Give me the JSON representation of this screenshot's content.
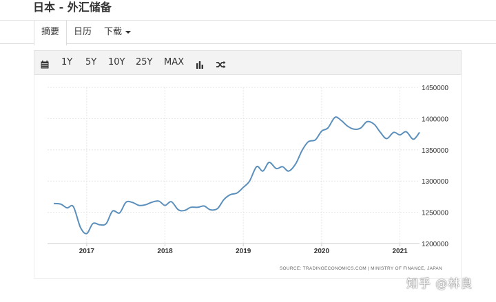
{
  "page_title": "日本 - 外汇储备",
  "tabs": [
    {
      "label": "摘要",
      "active": true
    },
    {
      "label": "日历",
      "active": false
    },
    {
      "label": "下载",
      "active": false,
      "dropdown": true
    }
  ],
  "toolbar": {
    "ranges": [
      "1Y",
      "5Y",
      "10Y",
      "25Y",
      "MAX"
    ],
    "icons": [
      "calendar-icon",
      "bar-chart-icon",
      "shuffle-icon"
    ]
  },
  "chart_data": {
    "type": "line",
    "title": "",
    "xlabel": "",
    "ylabel": "",
    "x_ticks": [
      "2017",
      "2018",
      "2019",
      "2020",
      "2021"
    ],
    "y_ticks": [
      1200000,
      1250000,
      1300000,
      1350000,
      1400000,
      1450000
    ],
    "ylim": [
      1200000,
      1450000
    ],
    "xlim": [
      2016.5,
      2021.25
    ],
    "grid": true,
    "line_color": "#5b8fbb",
    "series": [
      {
        "x": [
          2016.58,
          2016.67,
          2016.75,
          2016.83,
          2016.92,
          2017.0,
          2017.08,
          2017.17,
          2017.25,
          2017.33,
          2017.42,
          2017.5,
          2017.58,
          2017.67,
          2017.75,
          2017.83,
          2017.92,
          2018.0,
          2018.08,
          2018.17,
          2018.25,
          2018.33,
          2018.42,
          2018.5,
          2018.58,
          2018.67,
          2018.75,
          2018.83,
          2018.92,
          2019.0,
          2019.08,
          2019.17,
          2019.25,
          2019.33,
          2019.42,
          2019.5,
          2019.58,
          2019.67,
          2019.75,
          2019.83,
          2019.92,
          2020.0,
          2020.08,
          2020.17,
          2020.25,
          2020.33,
          2020.42,
          2020.5,
          2020.58,
          2020.67,
          2020.75,
          2020.83,
          2020.92,
          2021.0,
          2021.08,
          2021.17,
          2021.25
        ],
        "values": [
          1264000,
          1263000,
          1257000,
          1259000,
          1226000,
          1216000,
          1232000,
          1230000,
          1232000,
          1252000,
          1249000,
          1266000,
          1266000,
          1261000,
          1262000,
          1266000,
          1268000,
          1261000,
          1267000,
          1254000,
          1253000,
          1258000,
          1258000,
          1260000,
          1254000,
          1256000,
          1270000,
          1278000,
          1281000,
          1290000,
          1300000,
          1323000,
          1316000,
          1330000,
          1320000,
          1323000,
          1316000,
          1328000,
          1349000,
          1363000,
          1366000,
          1380000,
          1385000,
          1402000,
          1397000,
          1388000,
          1383000,
          1385000,
          1395000,
          1391000,
          1378000,
          1368000,
          1378000,
          1374000,
          1379000,
          1367000,
          1378000
        ]
      }
    ],
    "source_note": "SOURCE: TRADINGECONOMICS.COM | MINISTRY OF FINANCE, JAPAN"
  },
  "watermark": "知乎 @林良"
}
